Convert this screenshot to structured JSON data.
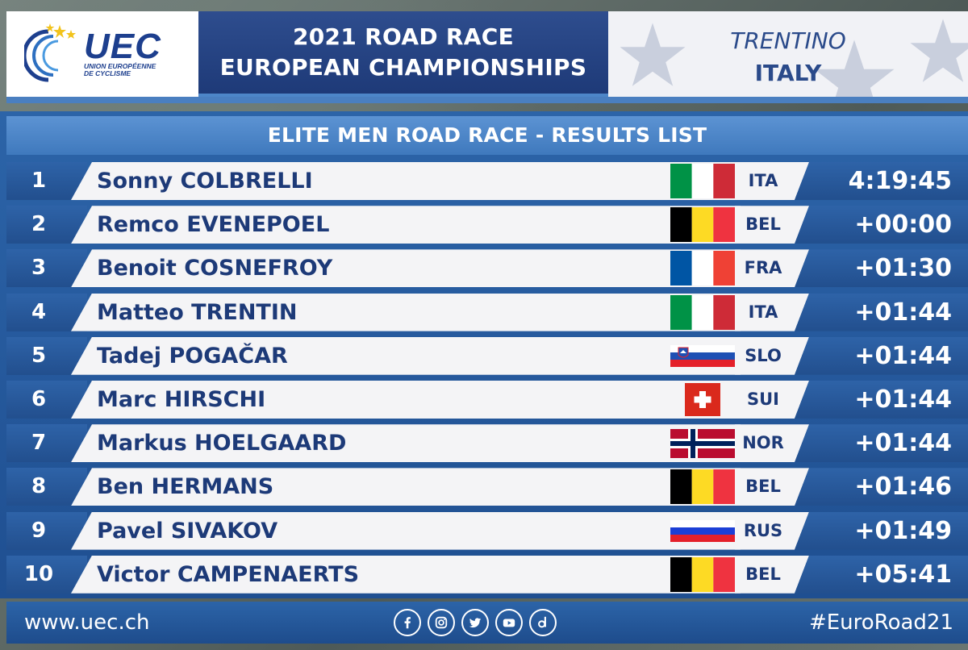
{
  "header": {
    "logo": {
      "name": "UEC",
      "sub_line1": "UNION EUROPÉENNE",
      "sub_line2": "DE CYCLISME"
    },
    "title_line1": "2021 ROAD RACE",
    "title_line2": "EUROPEAN CHAMPIONSHIPS",
    "venue_city": "TRENTINO",
    "venue_country": "ITALY"
  },
  "results": {
    "title": "ELITE MEN ROAD RACE - RESULTS LIST",
    "rows": [
      {
        "pos": "1",
        "name": "Sonny COLBRELLI",
        "nat": "ITA",
        "flag": "italy-flag-icon",
        "time": "4:19:45"
      },
      {
        "pos": "2",
        "name": "Remco EVENEPOEL",
        "nat": "BEL",
        "flag": "belgium-flag-icon",
        "time": "+00:00"
      },
      {
        "pos": "3",
        "name": "Benoit COSNEFROY",
        "nat": "FRA",
        "flag": "france-flag-icon",
        "time": "+01:30"
      },
      {
        "pos": "4",
        "name": "Matteo TRENTIN",
        "nat": "ITA",
        "flag": "italy-flag-icon",
        "time": "+01:44"
      },
      {
        "pos": "5",
        "name": "Tadej POGAČAR",
        "nat": "SLO",
        "flag": "slovenia-flag-icon",
        "time": "+01:44"
      },
      {
        "pos": "6",
        "name": "Marc HIRSCHI",
        "nat": "SUI",
        "flag": "switzerland-flag-icon",
        "time": "+01:44"
      },
      {
        "pos": "7",
        "name": "Markus HOELGAARD",
        "nat": "NOR",
        "flag": "norway-flag-icon",
        "time": "+01:44"
      },
      {
        "pos": "8",
        "name": "Ben HERMANS",
        "nat": "BEL",
        "flag": "belgium-flag-icon",
        "time": "+01:46"
      },
      {
        "pos": "9",
        "name": "Pavel SIVAKOV",
        "nat": "RUS",
        "flag": "russia-flag-icon",
        "time": "+01:49"
      },
      {
        "pos": "10",
        "name": "Victor CAMPENAERTS",
        "nat": "BEL",
        "flag": "belgium-flag-icon",
        "time": "+05:41"
      }
    ]
  },
  "footer": {
    "url": "www.uec.ch",
    "hashtag": "#EuroRoad21",
    "social_icons": [
      "facebook-icon",
      "instagram-icon",
      "twitter-icon",
      "youtube-icon",
      "dailymotion-icon"
    ]
  },
  "colors": {
    "brand_blue": "#1d3f8e",
    "panel_blue": "#2c64a8",
    "title_bar_blue": "#4a86c8",
    "row_bg": "#f4f4f6",
    "star_gold": "#f2c31b"
  }
}
